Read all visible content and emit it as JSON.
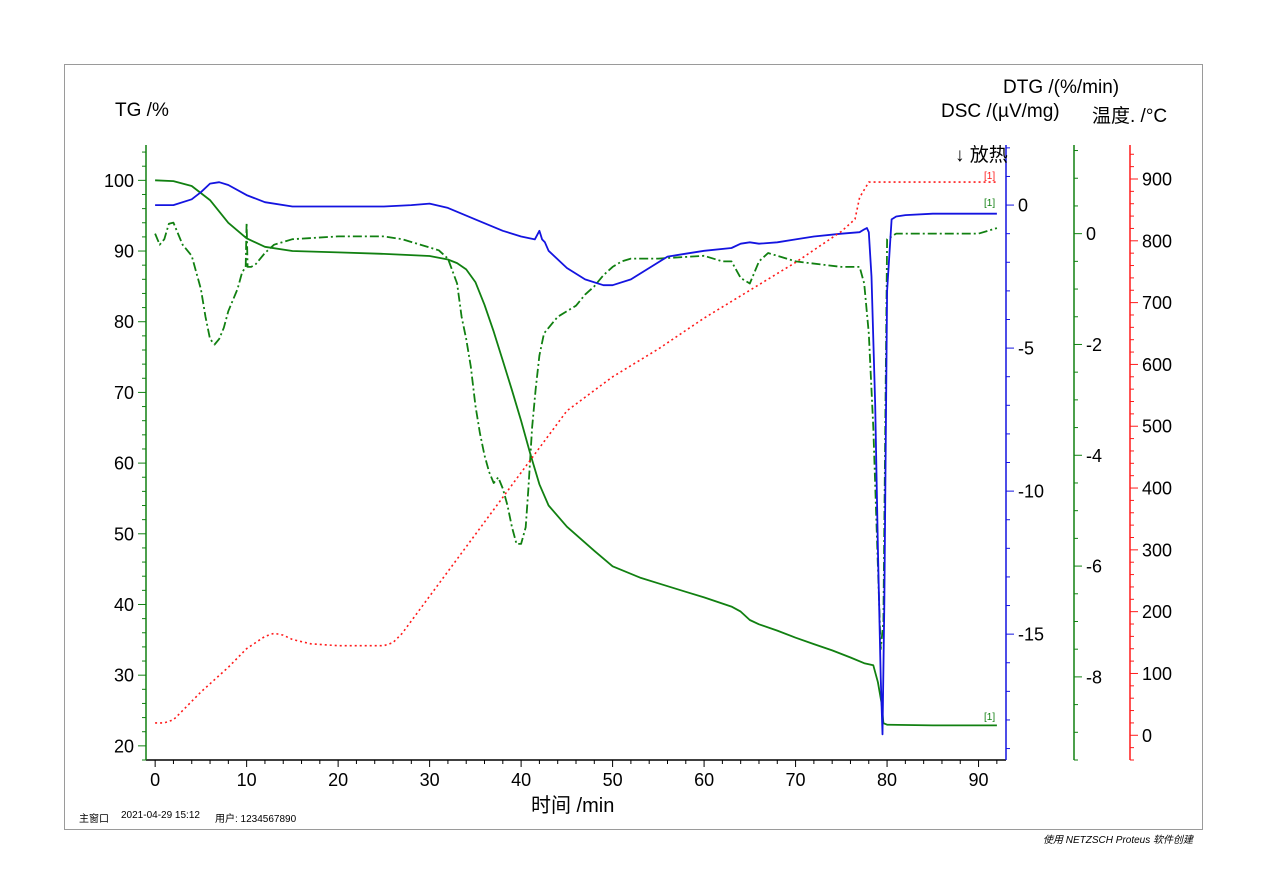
{
  "labels": {
    "tg_axis": "TG /%",
    "dtg_axis": "DTG /(%/min)",
    "dsc_axis": "DSC /(µV/mg)",
    "temp_axis": "温度. /°C",
    "time_axis": "时间 /min",
    "exo": "↓ 放热",
    "marker": "[1]"
  },
  "footer": {
    "window": "主窗口",
    "datetime": "2021-04-29 15:12",
    "user": "用户: 1234567890",
    "credit": "使用 NETZSCH Proteus 软件创建"
  },
  "colors": {
    "tg": "#118011",
    "dtg": "#118011",
    "dsc": "#1414e0",
    "temp": "#ff1a1a",
    "axis": "#000000"
  },
  "chart_data": {
    "type": "line",
    "xlabel": "时间 /min",
    "xlim": [
      -1,
      93
    ],
    "xticks": [
      0,
      10,
      20,
      30,
      40,
      50,
      60,
      70,
      80,
      90
    ],
    "axes": {
      "tg": {
        "label": "TG /%",
        "ylim": [
          18,
          105
        ],
        "ticks": [
          20,
          30,
          40,
          50,
          60,
          70,
          80,
          90,
          100
        ]
      },
      "dsc": {
        "label": "DSC /(µV/mg)",
        "ylim": [
          -19.4,
          2.1
        ],
        "ticks": [
          0,
          -5,
          -10,
          -15
        ]
      },
      "dtg": {
        "label": "DTG /(%/min)",
        "ylim": [
          -9.5,
          1.6
        ],
        "ticks": [
          0,
          -2,
          -4,
          -6,
          -8
        ]
      },
      "temp": {
        "label": "温度. /°C",
        "ylim": [
          -40,
          955
        ],
        "ticks": [
          0,
          100,
          200,
          300,
          400,
          500,
          600,
          700,
          800,
          900
        ]
      }
    },
    "series": [
      {
        "key": "tg",
        "axis": "tg",
        "style": "solid",
        "x": [
          0,
          2,
          4,
          6,
          8,
          10,
          12,
          15,
          20,
          25,
          30,
          32,
          33,
          34,
          35,
          36,
          37,
          38,
          39,
          40,
          41,
          42,
          43,
          45,
          48,
          50,
          53,
          55,
          58,
          60,
          63,
          64,
          65,
          66,
          68,
          70,
          72,
          74,
          76,
          77.5,
          78.5,
          79,
          79.4,
          79.6,
          80,
          85,
          90,
          92
        ],
        "y": [
          100,
          99.9,
          99.2,
          97.2,
          94,
          91.8,
          90.6,
          90,
          89.8,
          89.6,
          89.3,
          88.8,
          88.3,
          87.4,
          85.6,
          82.4,
          78.6,
          74.5,
          70.3,
          66,
          61.3,
          57,
          54,
          51,
          47.6,
          45.4,
          43.8,
          43,
          41.8,
          41,
          39.7,
          39,
          37.8,
          37.2,
          36.3,
          35.3,
          34.4,
          33.5,
          32.5,
          31.7,
          31.4,
          29,
          26,
          23.2,
          23,
          22.9,
          22.9,
          22.9
        ]
      },
      {
        "key": "dtg",
        "axis": "dtg",
        "style": "dashdot",
        "x": [
          0,
          0.5,
          1,
          1.5,
          2,
          3,
          4,
          5,
          5.5,
          6,
          6.5,
          7,
          7.5,
          8,
          8.5,
          9,
          9.5,
          9.9,
          10,
          10.1,
          10.5,
          11,
          12,
          13,
          15,
          20,
          25,
          27,
          28,
          29,
          30,
          31,
          32,
          33,
          33.5,
          34,
          34.5,
          35,
          35.5,
          36,
          36.5,
          37,
          37.5,
          38,
          38.5,
          39,
          39.5,
          40,
          40.5,
          40.8,
          41.2,
          41.6,
          42,
          42.5,
          43,
          43.5,
          44,
          45,
          46,
          47,
          48,
          49,
          50,
          51,
          52,
          53,
          55,
          60,
          62,
          63,
          64,
          65,
          66,
          67,
          70,
          75,
          77,
          77.5,
          78,
          78.5,
          79,
          79.3,
          79.6,
          80,
          81,
          85,
          90,
          92
        ],
        "y": [
          0,
          -0.2,
          -0.1,
          0.18,
          0.2,
          -0.2,
          -0.4,
          -1,
          -1.5,
          -1.9,
          -2,
          -1.9,
          -1.7,
          -1.4,
          -1.2,
          -1,
          -0.7,
          -0.6,
          0.2,
          -0.6,
          -0.6,
          -0.55,
          -0.35,
          -0.2,
          -0.1,
          -0.05,
          -0.05,
          -0.1,
          -0.15,
          -0.2,
          -0.25,
          -0.3,
          -0.45,
          -0.9,
          -1.5,
          -1.9,
          -2.4,
          -3.1,
          -3.6,
          -4,
          -4.3,
          -4.5,
          -4.4,
          -4.6,
          -4.9,
          -5.3,
          -5.6,
          -5.6,
          -5.3,
          -4.6,
          -3.5,
          -2.8,
          -2.2,
          -1.8,
          -1.7,
          -1.6,
          -1.5,
          -1.4,
          -1.3,
          -1.1,
          -0.95,
          -0.75,
          -0.6,
          -0.5,
          -0.45,
          -0.45,
          -0.45,
          -0.4,
          -0.5,
          -0.5,
          -0.8,
          -0.9,
          -0.5,
          -0.35,
          -0.5,
          -0.6,
          -0.6,
          -0.9,
          -1.8,
          -3.5,
          -6,
          -7.5,
          -7,
          -0.1,
          0,
          0,
          0,
          0.1
        ]
      },
      {
        "key": "dsc",
        "axis": "dsc",
        "style": "solid",
        "x": [
          0,
          2,
          4,
          5,
          6,
          7,
          8,
          10,
          12,
          15,
          20,
          25,
          28,
          30,
          32,
          35,
          38,
          40,
          41.5,
          42,
          42.3,
          42.6,
          43,
          45,
          47,
          49,
          50,
          52,
          54,
          56,
          58,
          60,
          63,
          64,
          65,
          66,
          68,
          70,
          72,
          75,
          77,
          77.5,
          77.8,
          78,
          78.3,
          78.7,
          79,
          79.3,
          79.5,
          79.7,
          80,
          80.5,
          81,
          82,
          85,
          90,
          92
        ],
        "y": [
          0,
          0,
          0.2,
          0.45,
          0.75,
          0.8,
          0.7,
          0.35,
          0.1,
          -0.05,
          -0.05,
          -0.05,
          0,
          0.05,
          -0.1,
          -0.5,
          -0.9,
          -1.1,
          -1.2,
          -0.9,
          -1.2,
          -1.3,
          -1.6,
          -2.2,
          -2.6,
          -2.8,
          -2.8,
          -2.6,
          -2.2,
          -1.8,
          -1.7,
          -1.6,
          -1.5,
          -1.35,
          -1.3,
          -1.35,
          -1.3,
          -1.2,
          -1.1,
          -1,
          -0.95,
          -0.85,
          -0.8,
          -0.95,
          -2.5,
          -7,
          -12,
          -16.5,
          -18.5,
          -14,
          -3,
          -0.5,
          -0.4,
          -0.35,
          -0.3,
          -0.3,
          -0.3
        ]
      },
      {
        "key": "temp",
        "axis": "temp",
        "style": "dotted",
        "x": [
          0,
          1,
          2,
          3,
          5,
          8,
          10,
          12,
          13,
          14,
          15,
          17,
          20,
          23,
          25,
          26,
          27,
          30,
          35,
          40,
          45,
          50,
          55,
          60,
          65,
          70,
          75,
          76.5,
          77,
          78,
          80,
          85,
          90,
          92
        ],
        "y": [
          20,
          20,
          25,
          40,
          70,
          110,
          140,
          160,
          165,
          162,
          155,
          148,
          145,
          145,
          145,
          150,
          165,
          225,
          325,
          425,
          525,
          580,
          625,
          675,
          720,
          765,
          815,
          835,
          870,
          895,
          895,
          895,
          895,
          895
        ]
      }
    ]
  }
}
